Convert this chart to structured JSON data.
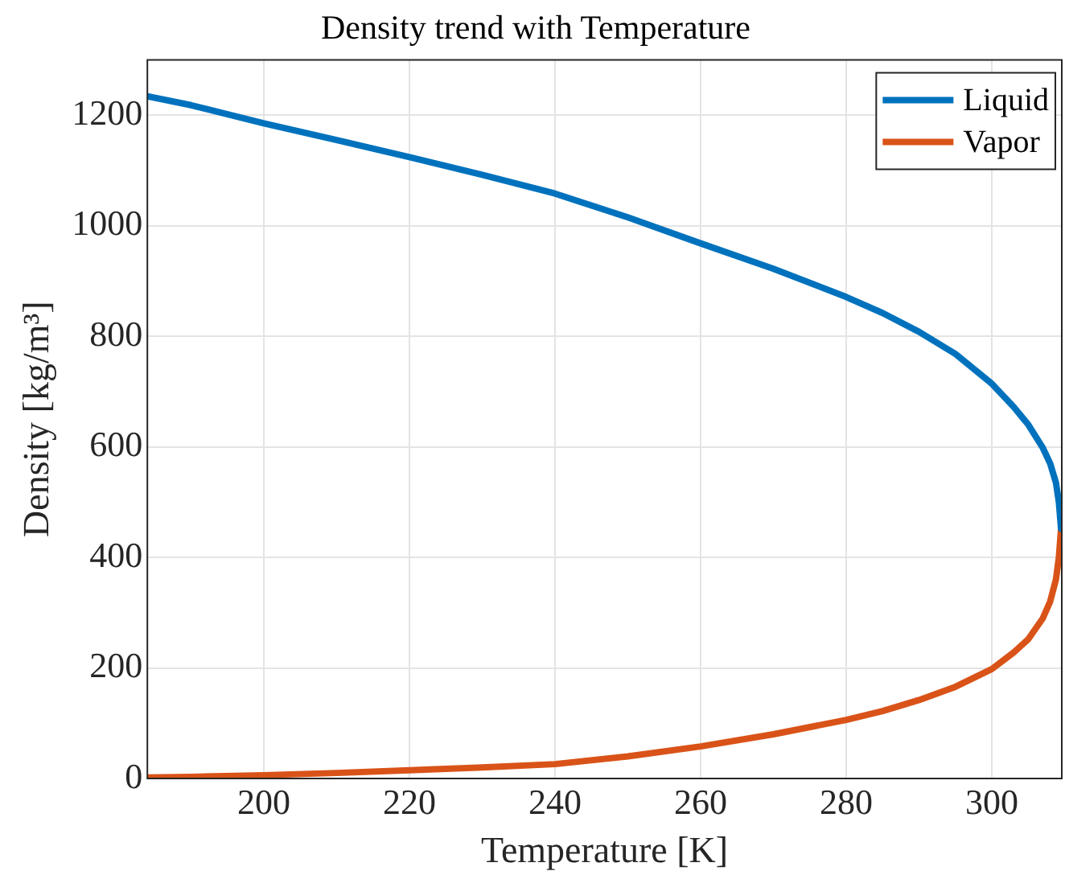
{
  "chart_data": {
    "type": "line",
    "title": "Density trend with Temperature",
    "xlabel": "Temperature [K]",
    "ylabel": "Density [kg/m³]",
    "xlim": [
      184,
      309.6
    ],
    "xticks": [
      200,
      220,
      240,
      260,
      280,
      300
    ],
    "ylim": [
      0,
      1300
    ],
    "yticks": [
      0,
      200,
      400,
      600,
      800,
      1000,
      1200
    ],
    "grid": true,
    "legend": "top right",
    "marker": "none",
    "line_style": "solid",
    "series": [
      {
        "name": "Liquid",
        "color": "#0072bd",
        "x": [
          184,
          190,
          200,
          210,
          220,
          230,
          240,
          250,
          260,
          270,
          280,
          285,
          290,
          295,
          300,
          303,
          305,
          307,
          308,
          308.8,
          309.2,
          309.5
        ],
        "values": [
          1234,
          1218,
          1185,
          1155,
          1124,
          1092,
          1058,
          1015,
          968,
          922,
          871,
          842,
          808,
          768,
          714,
          672,
          640,
          598,
          570,
          535,
          500,
          452
        ]
      },
      {
        "name": "Vapor",
        "color": "#d95319",
        "x": [
          184,
          190,
          200,
          210,
          220,
          230,
          240,
          250,
          260,
          270,
          280,
          285,
          290,
          295,
          300,
          303,
          305,
          307,
          308,
          308.8,
          309.2,
          309.5
        ],
        "values": [
          2,
          3,
          6,
          10,
          15,
          20,
          26,
          40,
          58,
          80,
          106,
          122,
          142,
          166,
          198,
          228,
          252,
          290,
          320,
          360,
          400,
          452
        ]
      }
    ]
  }
}
